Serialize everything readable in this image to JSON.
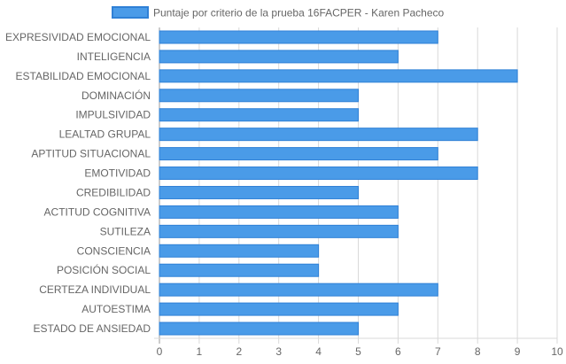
{
  "chart_data": {
    "type": "bar",
    "orientation": "horizontal",
    "categories": [
      "EXPRESIVIDAD EMOCIONAL",
      "INTELIGENCIA",
      "ESTABILIDAD EMOCIONAL",
      "DOMINACIÓN",
      "IMPULSIVIDAD",
      "LEALTAD GRUPAL",
      "APTITUD SITUACIONAL",
      "EMOTIVIDAD",
      "CREDIBILIDAD",
      "ACTITUD COGNITIVA",
      "SUTILEZA",
      "CONSCIENCIA",
      "POSICIÓN SOCIAL",
      "CERTEZA INDIVIDUAL",
      "AUTOESTIMA",
      "ESTADO DE ANSIEDAD"
    ],
    "series": [
      {
        "name": "Puntaje por criterio de la prueba 16FACPER - Karen Pacheco",
        "values": [
          7,
          6,
          9,
          5,
          5,
          8,
          7,
          8,
          5,
          6,
          6,
          4,
          4,
          7,
          6,
          5
        ],
        "color": "#4a9be8",
        "border_color": "#2f80d6"
      }
    ],
    "xlim": [
      0,
      10
    ],
    "xticks": [
      "0",
      "1",
      "2",
      "3",
      "4",
      "5",
      "6",
      "7",
      "8",
      "9",
      "10"
    ],
    "grid": true,
    "legend_position": "top"
  }
}
